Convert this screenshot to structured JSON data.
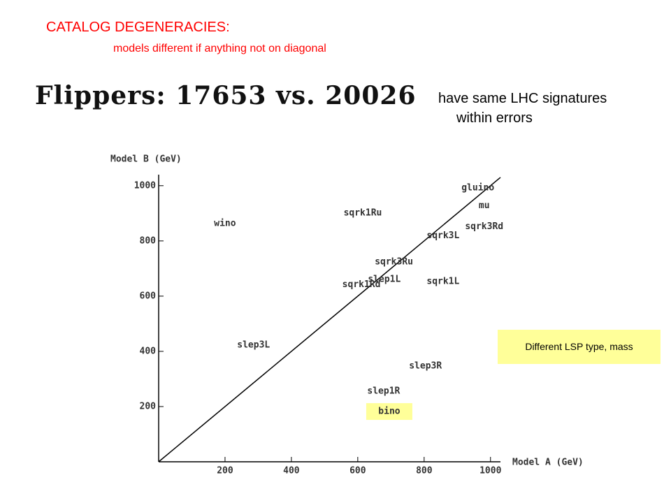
{
  "header": {
    "title": "CATALOG DEGENERACIES:",
    "subtitle": "models different if anything not on diagonal"
  },
  "flippers": "Flippers:  17653  vs.  20026",
  "note": [
    "have same LHC signatures",
    "within errors"
  ],
  "callout": "Different LSP type, mass",
  "chart_data": {
    "type": "scatter",
    "x_label": "Model A (GeV)",
    "y_label": "Model B (GeV)",
    "xlim": [
      0,
      1030
    ],
    "ylim": [
      0,
      1040
    ],
    "xticks": [
      200,
      400,
      600,
      800,
      1000
    ],
    "yticks": [
      200,
      400,
      600,
      800,
      1000
    ],
    "diagonal": true,
    "points": [
      {
        "label": "gluino",
        "x": 962,
        "y": 992
      },
      {
        "label": "mu",
        "x": 981,
        "y": 927
      },
      {
        "label": "sqrk3Rd",
        "x": 981,
        "y": 851
      },
      {
        "label": "sqrk3L",
        "x": 857,
        "y": 818
      },
      {
        "label": "sqrk1Ru",
        "x": 615,
        "y": 901
      },
      {
        "label": "wino",
        "x": 200,
        "y": 863
      },
      {
        "label": "sqrk3Ru",
        "x": 709,
        "y": 724
      },
      {
        "label": "slep1L",
        "x": 680,
        "y": 661
      },
      {
        "label": "sqrk1Rd",
        "x": 611,
        "y": 641
      },
      {
        "label": "sqrk1L",
        "x": 857,
        "y": 653
      },
      {
        "label": "slep3L",
        "x": 286,
        "y": 423
      },
      {
        "label": "slep3R",
        "x": 804,
        "y": 347
      },
      {
        "label": "slep1R",
        "x": 678,
        "y": 256
      },
      {
        "label": "bino",
        "x": 695,
        "y": 182,
        "background": "#ffff99"
      }
    ]
  }
}
